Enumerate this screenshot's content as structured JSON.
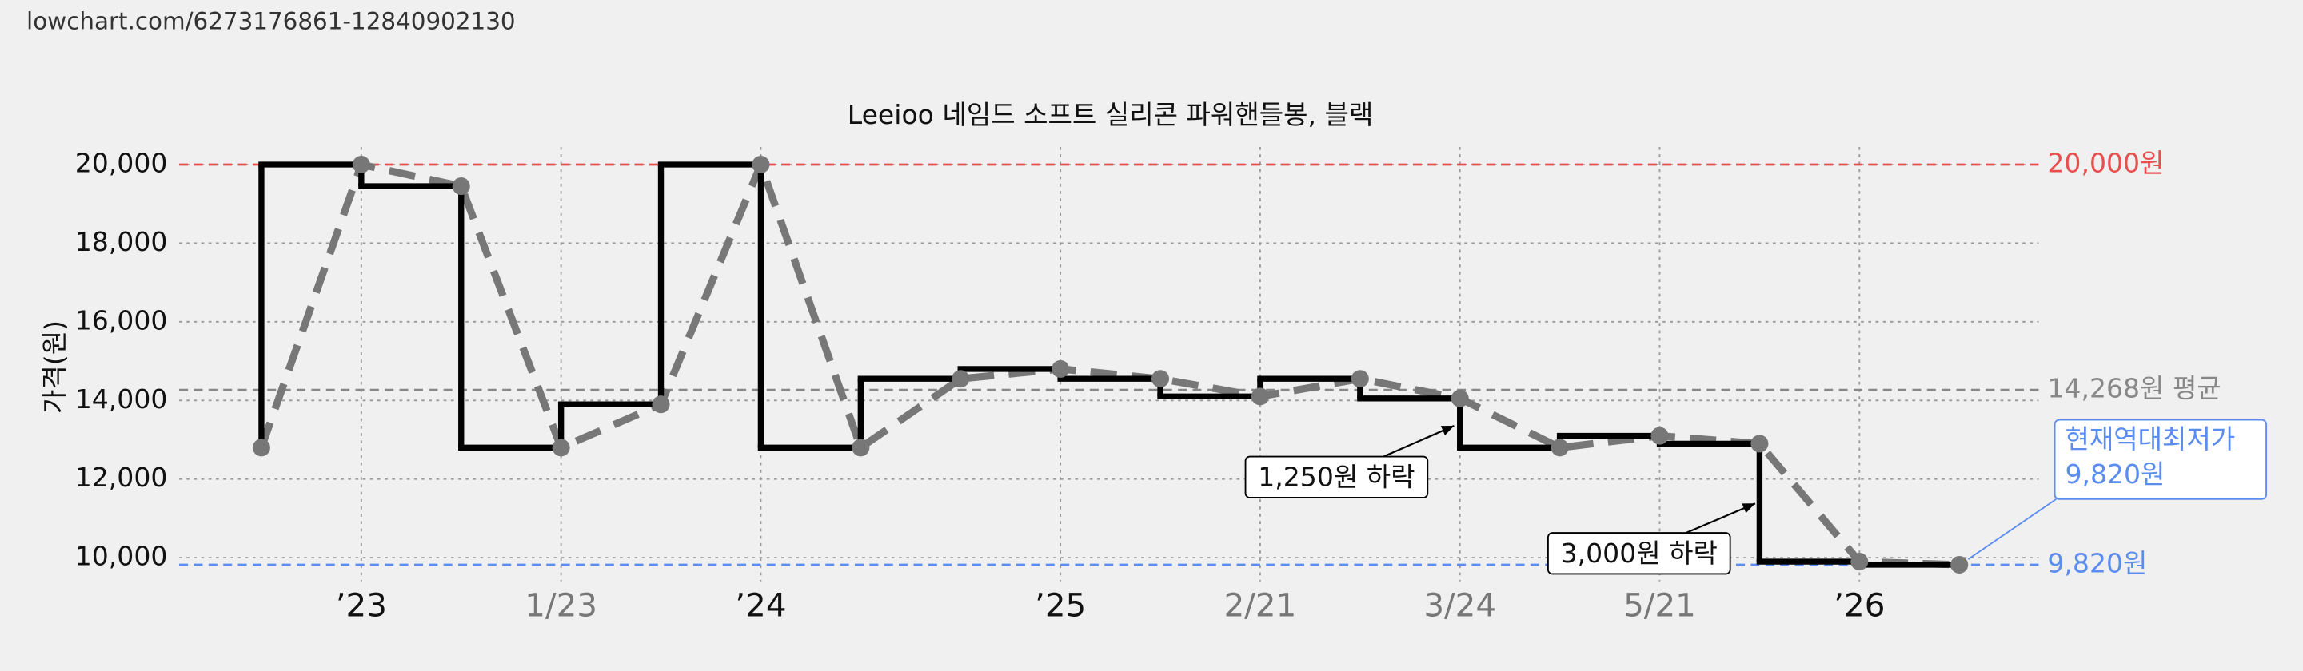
{
  "url": "lowchart.com/6273176861-12840902130",
  "chart_data": {
    "type": "step",
    "title": "Leeioo 네임드 소프트 실리콘 파워핸들봉, 블랙",
    "y_label": "가격(원)",
    "categories": [
      null,
      "’23",
      null,
      "1/23",
      null,
      "’24",
      null,
      null,
      "’25",
      null,
      "2/21",
      null,
      "3/24",
      null,
      "5/21",
      null,
      "’26",
      null
    ],
    "values": [
      12800,
      20000,
      19450,
      12800,
      13900,
      20000,
      12800,
      14550,
      14800,
      14550,
      14100,
      14550,
      14050,
      12800,
      13100,
      12900,
      9900,
      9820
    ],
    "step_color": "#000000",
    "line_color": "#777777",
    "ylim": [
      9400,
      21000
    ],
    "yticks": [
      {
        "value": 10000,
        "label": "10,000"
      },
      {
        "value": 12000,
        "label": "12,000"
      },
      {
        "value": 14000,
        "label": "14,000"
      },
      {
        "value": 16000,
        "label": "16,000"
      },
      {
        "value": 18000,
        "label": "18,000"
      },
      {
        "value": 20000,
        "label": "20,000"
      }
    ],
    "grid": true,
    "reference_lines": [
      {
        "value": 20000,
        "label": "20,000원",
        "color": "#e85050"
      },
      {
        "value": 14268,
        "label": "14,268원 평균",
        "color": "#888888"
      },
      {
        "value": 9820,
        "label": "9,820원",
        "color": "#5b8def"
      }
    ],
    "annotations": [
      "1,250원 하락",
      "3,000원 하락"
    ],
    "callout": [
      "현재역대최저가",
      "9,820원"
    ]
  }
}
